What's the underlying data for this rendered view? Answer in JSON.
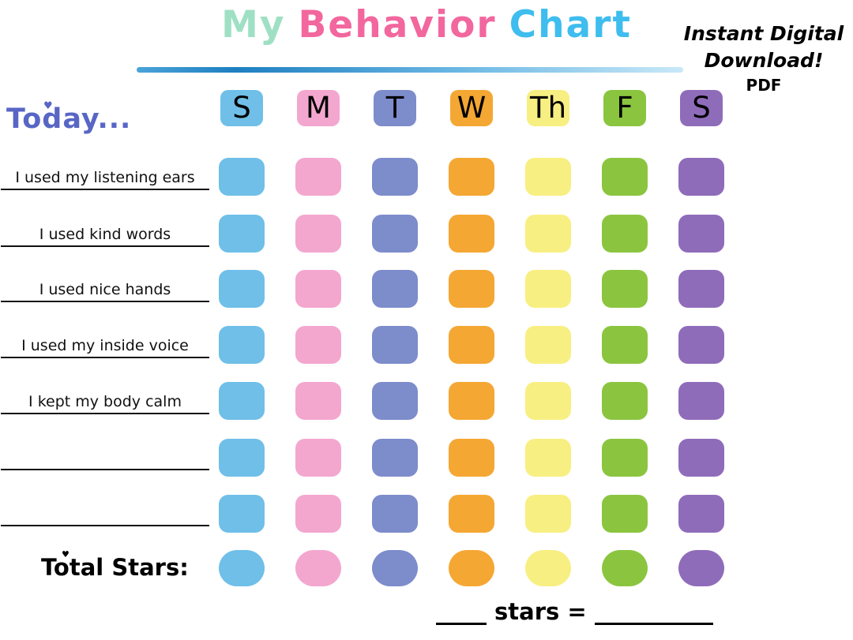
{
  "title": {
    "part1": "My",
    "part2": "Behavior",
    "part3": "Chart",
    "part1_color": "#9fe0c4",
    "part2_color": "#f2679e",
    "part3_color": "#3ebdee"
  },
  "corner": {
    "line1": "Instant Digital",
    "line2": "Download!",
    "line3": "PDF"
  },
  "today_label": "Today...",
  "today_color": "#5866c5",
  "icons": {
    "heart": "♥"
  },
  "days": [
    {
      "label": "S",
      "color": "#6fbfe8"
    },
    {
      "label": "M",
      "color": "#f3a7cf"
    },
    {
      "label": "T",
      "color": "#7d8ccb"
    },
    {
      "label": "W",
      "color": "#f5a733"
    },
    {
      "label": "Th",
      "color": "#f8ef82"
    },
    {
      "label": "F",
      "color": "#8bc53f"
    },
    {
      "label": "S",
      "color": "#8f6cba"
    }
  ],
  "rows": [
    {
      "label": "I used my listening ears"
    },
    {
      "label": "I used kind words"
    },
    {
      "label": "I used nice hands"
    },
    {
      "label": "I used my inside voice"
    },
    {
      "label": "I kept my body calm"
    },
    {
      "label": ""
    },
    {
      "label": ""
    }
  ],
  "total_label": "Total Stars:",
  "footer": {
    "stars_label": "stars ="
  }
}
